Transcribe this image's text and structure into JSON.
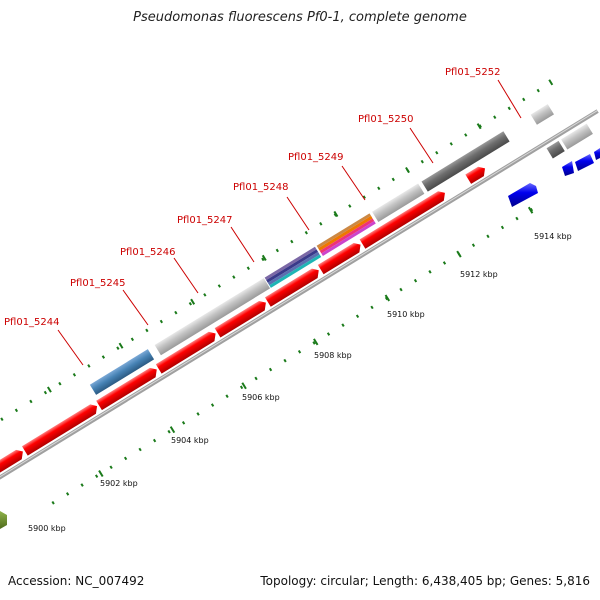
{
  "title": "Pseudomonas fluorescens Pf0-1, complete genome",
  "footer": {
    "accession": "Accession: NC_007492",
    "summary": "Topology: circular; Length: 6,438,405 bp; Genes: 5,816"
  },
  "colors": {
    "cds_red": "#ff0000",
    "backbone": "#9a9a9a",
    "tick": "#1a7a1a",
    "label_red": "#cc0000",
    "blue_genes": "#0000ee",
    "steel_blue": "#4682b4",
    "light_gray": "#c0c0c0",
    "dark_gray": "#707070"
  },
  "scale_labels": [
    "5900 kbp",
    "5902 kbp",
    "5904 kbp",
    "5906 kbp",
    "5908 kbp",
    "5910 kbp",
    "5912 kbp",
    "5914 kbp"
  ],
  "gene_labels": [
    "Pfl01_5244",
    "Pfl01_5245",
    "Pfl01_5246",
    "Pfl01_5247",
    "Pfl01_5248",
    "Pfl01_5249",
    "Pfl01_5250",
    "Pfl01_5252"
  ]
}
